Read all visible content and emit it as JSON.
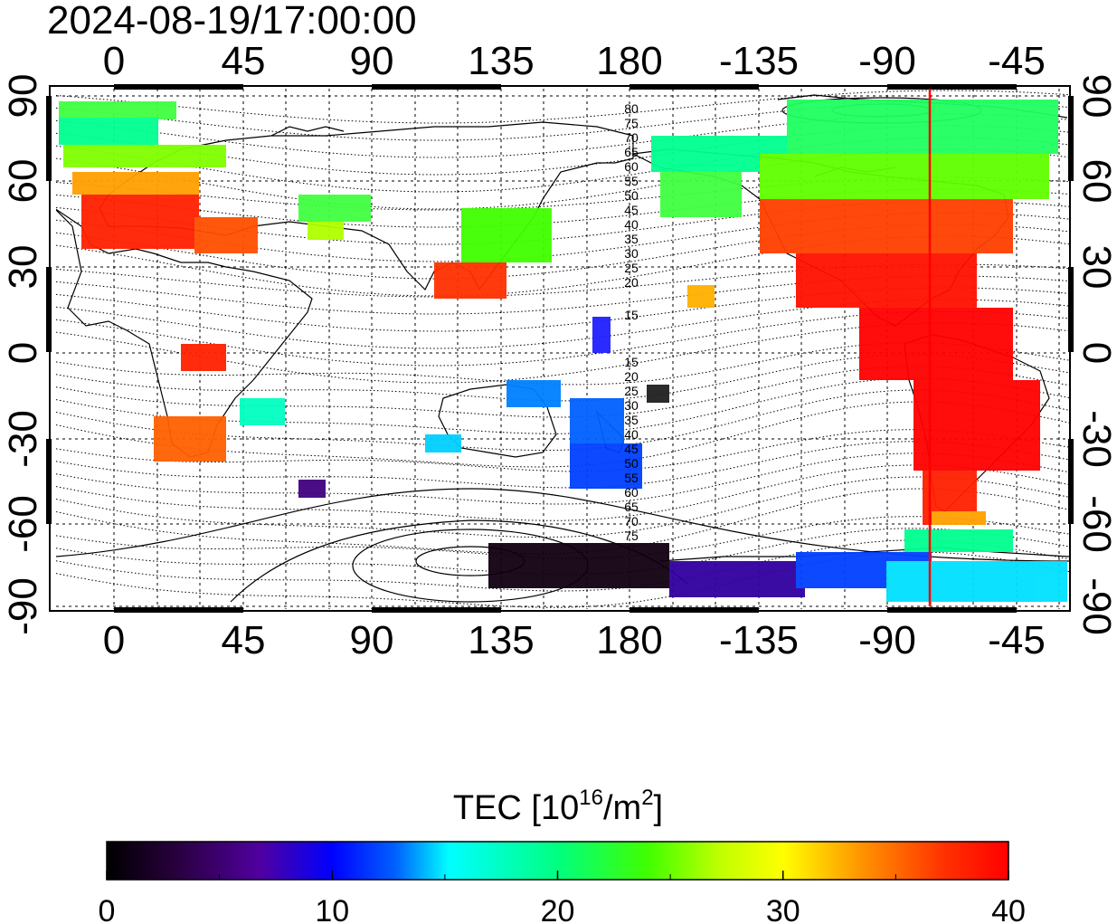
{
  "map": {
    "title": "2024-08-19/17:00:00",
    "lon_ticks": [
      "0",
      "45",
      "90",
      "135",
      "180",
      "-135",
      "-90",
      "-45"
    ],
    "lat_ticks": [
      "90",
      "60",
      "30",
      "0",
      "-30",
      "-60",
      "-90"
    ],
    "contour_labels_north": [
      "80",
      "75",
      "70",
      "65",
      "60",
      "55",
      "50",
      "45",
      "40",
      "35",
      "30",
      "25",
      "20",
      "15"
    ],
    "contour_labels_south": [
      "15",
      "20",
      "25",
      "30",
      "35",
      "40",
      "45",
      "50",
      "55",
      "60",
      "65",
      "70",
      "75"
    ],
    "marker_color": "#ff0000"
  },
  "colorbar": {
    "title_prefix": "TEC  [10",
    "title_exp1": "16",
    "title_mid": "/m",
    "title_exp2": "2",
    "title_suffix": "]",
    "ticks": [
      "0",
      "10",
      "20",
      "30",
      "40"
    ],
    "min": 0,
    "max": 40
  }
}
